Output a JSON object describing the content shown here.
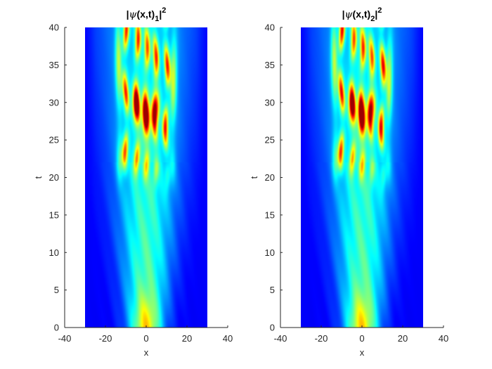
{
  "chart_data": [
    {
      "type": "heatmap",
      "title_parts": [
        "|",
        "ψ",
        "(x,t)",
        "1",
        "|",
        "2"
      ],
      "xlabel": "x",
      "ylabel": "t",
      "xlim": [
        -40,
        40
      ],
      "ylim": [
        0,
        40
      ],
      "xticks": [
        "-40",
        "-20",
        "0",
        "20",
        "40"
      ],
      "yticks": [
        "0",
        "5",
        "10",
        "15",
        "20",
        "25",
        "30",
        "35",
        "40"
      ],
      "data_extent": {
        "x": [
          -30,
          30
        ],
        "t": [
          0,
          40
        ]
      },
      "colormap": "jet",
      "features": {
        "initial_peak": {
          "x": 0,
          "t": 0
        },
        "bright_streams_x": [
          -10,
          -4.5,
          0,
          4.5,
          10
        ],
        "outer_streams_x": [
          -13,
          13
        ],
        "max_intensity_t": 28
      }
    },
    {
      "type": "heatmap",
      "title_parts": [
        "|",
        "ψ",
        "(x,t)",
        "2",
        "|",
        "2"
      ],
      "xlabel": "x",
      "ylabel": "t",
      "xlim": [
        -40,
        40
      ],
      "ylim": [
        0,
        40
      ],
      "xticks": [
        "-40",
        "-20",
        "0",
        "20",
        "40"
      ],
      "yticks": [
        "0",
        "5",
        "10",
        "15",
        "20",
        "25",
        "30",
        "35",
        "40"
      ],
      "data_extent": {
        "x": [
          -30,
          30
        ],
        "t": [
          0,
          40
        ]
      },
      "colormap": "jet",
      "features": {
        "initial_peak": {
          "x": 0,
          "t": 0
        },
        "bright_streams_x": [
          -10,
          -4.5,
          0,
          4.5,
          10
        ],
        "outer_streams_x": [
          -13,
          13
        ],
        "max_intensity_t": 28
      }
    }
  ]
}
